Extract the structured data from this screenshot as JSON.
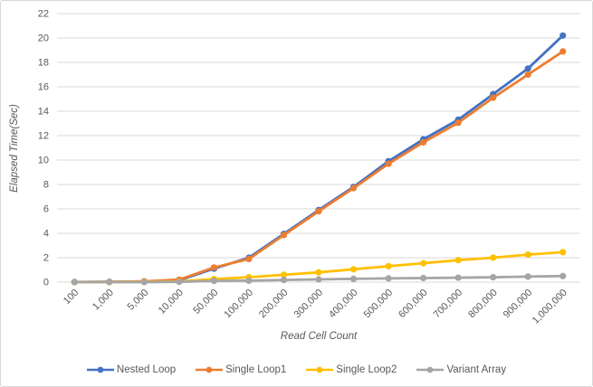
{
  "chart_data": {
    "type": "line",
    "title": "",
    "xlabel": "Read Cell Count",
    "ylabel": "Elapsed Time(Sec)",
    "categories": [
      "100",
      "1,000",
      "5,000",
      "10,000",
      "50,000",
      "100,000",
      "200,000",
      "300,000",
      "400,000",
      "500,000",
      "600,000",
      "700,000",
      "800,000",
      "900,000",
      "1,000,000"
    ],
    "series": [
      {
        "name": "Nested Loop",
        "color": "#4472C4",
        "values": [
          0.01,
          0.02,
          0.06,
          0.15,
          1.1,
          2.0,
          3.95,
          5.9,
          7.8,
          9.9,
          11.7,
          13.3,
          15.4,
          17.5,
          20.2
        ]
      },
      {
        "name": "Single Loop1",
        "color": "#ED7D31",
        "values": [
          0.01,
          0.02,
          0.07,
          0.2,
          1.2,
          1.9,
          3.85,
          5.8,
          7.7,
          9.7,
          11.45,
          13.05,
          15.1,
          17.0,
          18.9
        ]
      },
      {
        "name": "Single Loop2",
        "color": "#FFC000",
        "values": [
          0.0,
          0.0,
          0.02,
          0.05,
          0.25,
          0.4,
          0.6,
          0.8,
          1.05,
          1.3,
          1.55,
          1.8,
          2.0,
          2.25,
          2.45
        ]
      },
      {
        "name": "Variant Array",
        "color": "#A5A5A5",
        "values": [
          0.0,
          0.0,
          0.0,
          0.02,
          0.1,
          0.12,
          0.18,
          0.22,
          0.27,
          0.3,
          0.33,
          0.36,
          0.4,
          0.45,
          0.5
        ]
      }
    ],
    "ylim": [
      0,
      22
    ],
    "y_tick_step": 2,
    "y_tick_labels": [
      "0",
      "2",
      "4",
      "6",
      "8",
      "10",
      "12",
      "14",
      "16",
      "18",
      "20",
      "22"
    ],
    "grid": "horizontal",
    "legend_position": "bottom",
    "colors": {
      "background": "#FFFFFF",
      "gridline": "#D9D9D9",
      "frame_border": "#D9D9D9",
      "axis_text": "#595959"
    }
  }
}
